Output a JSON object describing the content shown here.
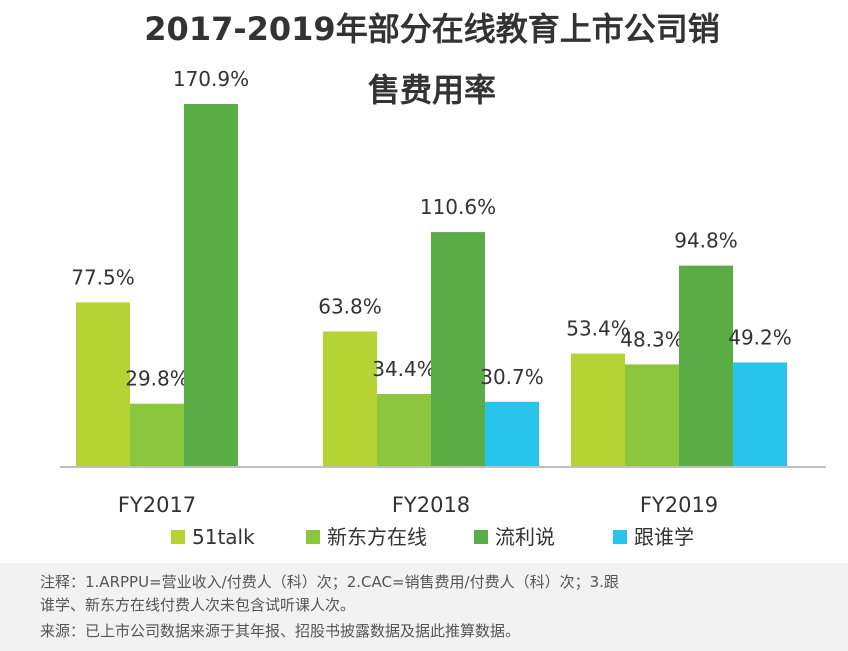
{
  "chart_data": {
    "type": "bar",
    "title": "2017-2019年部分在线教育上市公司销售费用率",
    "title_lines": [
      "2017-2019年部分在线教育上市公司销",
      "售费用率"
    ],
    "categories": [
      "FY2017",
      "FY2018",
      "FY2019"
    ],
    "series": [
      {
        "name": "51talk",
        "color": "#b5d334",
        "values": [
          77.5,
          63.8,
          53.4
        ],
        "labels": [
          "77.5%",
          "63.8%",
          "53.4%"
        ]
      },
      {
        "name": "新东方在线",
        "color": "#8cc63f",
        "values": [
          29.8,
          34.4,
          48.3
        ],
        "labels": [
          "29.8%",
          "34.4%",
          "48.3%"
        ]
      },
      {
        "name": "流利说",
        "color": "#5aac44",
        "values": [
          170.9,
          110.6,
          94.8
        ],
        "labels": [
          "170.9%",
          "110.6%",
          "94.8%"
        ]
      },
      {
        "name": "跟谁学",
        "color": "#29c4ec",
        "values": [
          null,
          30.7,
          49.2
        ],
        "labels": [
          null,
          "30.7%",
          "49.2%"
        ]
      }
    ],
    "ylim": [
      0,
      170.9
    ],
    "xlabel": "",
    "ylabel": "",
    "legend_position": "bottom",
    "grid": false
  },
  "notes": {
    "line1": "注释：1.ARPPU=营业收入/付费人（科）次；2.CAC=销售费用/付费人（科）次；3.跟",
    "line2": "谁学、新东方在线付费人次未包含试听课人次。",
    "line3": "来源：已上市公司数据来源于其年报、招股书披露数据及据此推算数据。"
  }
}
